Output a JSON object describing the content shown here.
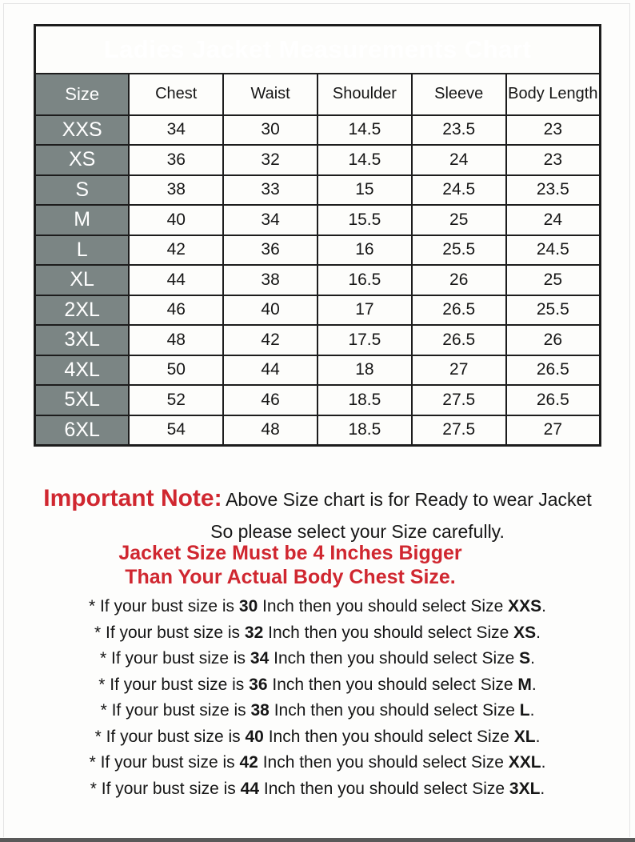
{
  "page": {
    "title": "Ladies Jacket Measurements Chart"
  },
  "table": {
    "columns": [
      "Size",
      "Chest",
      "Waist",
      "Shoulder",
      "Sleeve",
      "Body Length"
    ],
    "rows": [
      {
        "size": "XXS",
        "values": [
          "34",
          "30",
          "14.5",
          "23.5",
          "23"
        ]
      },
      {
        "size": "XS",
        "values": [
          "36",
          "32",
          "14.5",
          "24",
          "23"
        ]
      },
      {
        "size": "S",
        "values": [
          "38",
          "33",
          "15",
          "24.5",
          "23.5"
        ]
      },
      {
        "size": "M",
        "values": [
          "40",
          "34",
          "15.5",
          "25",
          "24"
        ]
      },
      {
        "size": "L",
        "values": [
          "42",
          "36",
          "16",
          "25.5",
          "24.5"
        ]
      },
      {
        "size": "XL",
        "values": [
          "44",
          "38",
          "16.5",
          "26",
          "25"
        ]
      },
      {
        "size": "2XL",
        "values": [
          "46",
          "40",
          "17",
          "26.5",
          "25.5"
        ]
      },
      {
        "size": "3XL",
        "values": [
          "48",
          "42",
          "17.5",
          "26.5",
          "26"
        ]
      },
      {
        "size": "4XL",
        "values": [
          "50",
          "44",
          "18",
          "27",
          "26.5"
        ]
      },
      {
        "size": "5XL",
        "values": [
          "52",
          "46",
          "18.5",
          "27.5",
          "26.5"
        ]
      },
      {
        "size": "6XL",
        "values": [
          "54",
          "48",
          "18.5",
          "27.5",
          "27"
        ]
      }
    ]
  },
  "notes": {
    "important_label": "Important Note:",
    "line1": "Above Size chart is for Ready to wear Jacket",
    "line2": "So please select your Size carefully.",
    "warning_line1": "Jacket Size Must be 4 Inches Bigger",
    "warning_line2": "Than Your Actual Body Chest Size."
  },
  "bullets": [
    {
      "pre": "* If your bust size is",
      "bust": "30",
      "mid": "Inch then you should select Size",
      "size": "XXS",
      "dot": "."
    },
    {
      "pre": "* If your bust size is",
      "bust": "32",
      "mid": "Inch then you should select Size",
      "size": "XS",
      "dot": "."
    },
    {
      "pre": "* If your bust size is",
      "bust": "34",
      "mid": "Inch then you should select Size",
      "size": "S",
      "dot": "."
    },
    {
      "pre": "* If your bust size is",
      "bust": "36",
      "mid": "Inch then you should select Size",
      "size": "M",
      "dot": "."
    },
    {
      "pre": "* If your bust size is",
      "bust": "38",
      "mid": "Inch then you should select Size",
      "size": "L",
      "dot": "."
    },
    {
      "pre": "* If your bust size is",
      "bust": "40",
      "mid": "Inch then you should select Size",
      "size": "XL",
      "dot": "."
    },
    {
      "pre": "* If your bust size is",
      "bust": "42",
      "mid": "Inch then you should select Size",
      "size": "XXL",
      "dot": "."
    },
    {
      "pre": "* If your bust size is",
      "bust": "44",
      "mid": "Inch then you should select Size",
      "size": "3XL",
      "dot": "."
    }
  ],
  "colors": {
    "header-gray": "#7b8584",
    "border-dark": "#1d1d1d",
    "accent-red": "#d02730",
    "text-black": "#161616",
    "page-bg": "#fdfdfc",
    "frame-line": "#e4e4e4",
    "bottom-bar": "#595959"
  }
}
